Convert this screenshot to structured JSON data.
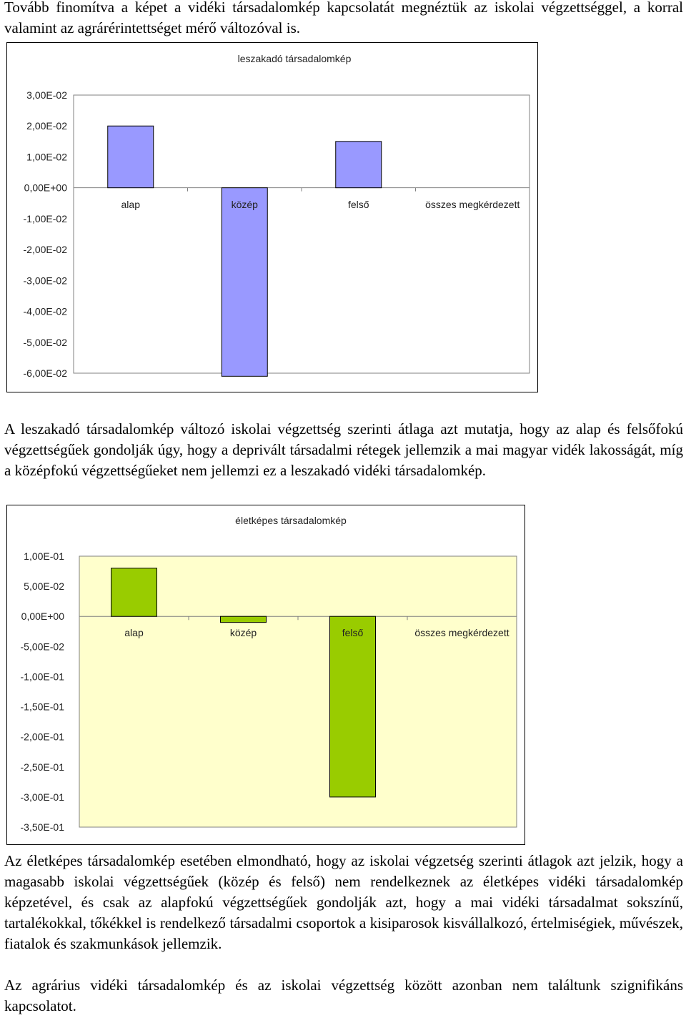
{
  "paragraphs": {
    "intro": "Tovább finomítva a képet a vidéki társadalomkép kapcsolatát megnéztük az iskolai végzettséggel, a korral valamint az agrárérintettséget mérő változóval is.",
    "leszakado_text": "A leszakadó társadalomkép változó iskolai végzettség szerinti átlaga azt mutatja, hogy az alap és felsőfokú végzettségűek gondolják úgy, hogy a deprivált társadalmi rétegek jellemzik a mai magyar vidék lakosságát, míg a középfokú végzettségűeket nem jellemzi ez a leszakadó vidéki társadalomkép.",
    "eletkepes_text": "Az életképes társadalomkép esetében elmondható, hogy az iskolai végzetség szerinti átlagok azt jelzik, hogy a magasabb iskolai végzettségűek (közép és felső) nem rendelkeznek az életképes vidéki társadalomkép képzetével, és csak az alapfokú végzettségűek gondolják azt, hogy a mai vidéki társadalmat sokszínű, tartalékokkal, tőkékkel is rendelkező társadalmi csoportok a kisiparosok kisvállalkozó, értelmiségiek, művészek, fiatalok és szakmunkások jellemzik.",
    "agrarius_text": "Az agrárius vidéki társadalomkép és az iskolai végzettség között azonban nem találtunk szignifikáns kapcsolatot."
  },
  "chart_data": [
    {
      "type": "bar",
      "title": "leszakadó társadalomkép",
      "categories": [
        "alap",
        "közép",
        "felső",
        "összes megkérdezett"
      ],
      "values": [
        0.02,
        -0.061,
        0.015,
        0
      ],
      "ylim": [
        -0.06,
        0.03
      ],
      "ticks": [
        0.03,
        0.02,
        0.01,
        0,
        -0.01,
        -0.02,
        -0.03,
        -0.04,
        -0.05,
        -0.06
      ],
      "tick_labels": [
        "3,00E-02",
        "2,00E-02",
        "1,00E-02",
        "0,00E+00",
        "-1,00E-02",
        "-2,00E-02",
        "-3,00E-02",
        "-4,00E-02",
        "-5,00E-02",
        "-6,00E-02"
      ],
      "bar_color": "#9999ff",
      "plot_bg": "#ffffff",
      "grid": false
    },
    {
      "type": "bar",
      "title": "életképes társadalomkép",
      "categories": [
        "alap",
        "közép",
        "felső",
        "összes megkérdezett"
      ],
      "values": [
        0.08,
        -0.01,
        -0.3,
        0
      ],
      "ylim": [
        -0.35,
        0.1
      ],
      "ticks": [
        0.1,
        0.05,
        0,
        -0.05,
        -0.1,
        -0.15,
        -0.2,
        -0.25,
        -0.3,
        -0.35
      ],
      "tick_labels": [
        "1,00E-01",
        "5,00E-02",
        "0,00E+00",
        "-5,00E-02",
        "-1,00E-01",
        "-1,50E-01",
        "-2,00E-01",
        "-2,50E-01",
        "-3,00E-01",
        "-3,50E-01"
      ],
      "bar_color": "#99cc00",
      "plot_bg": "#ffffcc",
      "grid": false
    }
  ]
}
